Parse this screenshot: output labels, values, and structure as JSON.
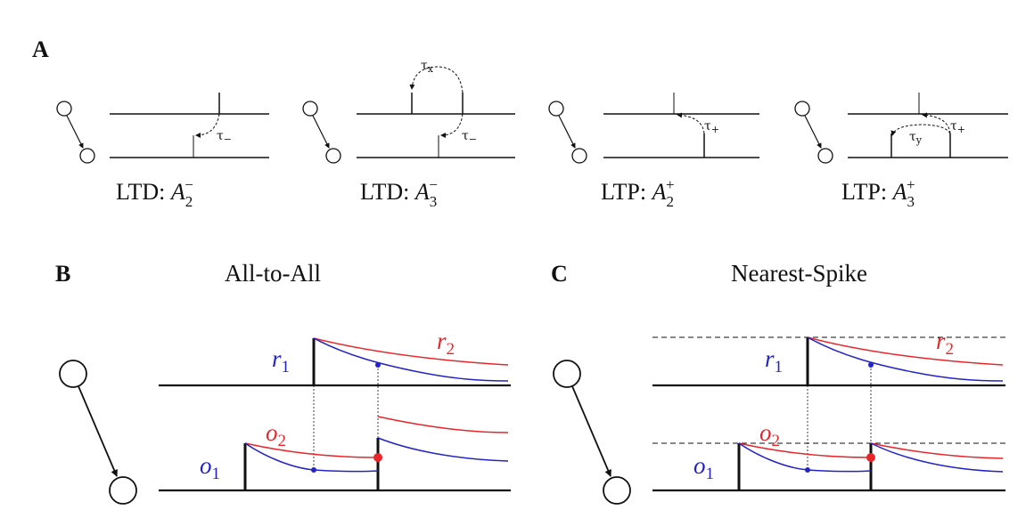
{
  "panels": {
    "a": {
      "letter": "A",
      "rules": [
        {
          "label_prefix": "LTD: ",
          "symbol": "A",
          "sub": "2",
          "sup": "−",
          "tau": "τ",
          "tau_sub": "−"
        },
        {
          "label_prefix": "LTD: ",
          "symbol": "A",
          "sub": "3",
          "sup": "−",
          "tau": "τ",
          "tau_sub": "−",
          "tau2": "τ",
          "tau2_sub": "x"
        },
        {
          "label_prefix": "LTP: ",
          "symbol": "A",
          "sub": "2",
          "sup": "+",
          "tau": "τ",
          "tau_sub": "+"
        },
        {
          "label_prefix": "LTP: ",
          "symbol": "A",
          "sub": "3",
          "sup": "+",
          "tau": "τ",
          "tau_sub": "+",
          "tau2": "τ",
          "tau2_sub": "y"
        }
      ]
    },
    "b": {
      "letter": "B",
      "title": "All-to-All",
      "labels": {
        "r1": "r",
        "r1_sub": "1",
        "r2": "r",
        "r2_sub": "2",
        "o1": "o",
        "o1_sub": "1",
        "o2": "o",
        "o2_sub": "2"
      }
    },
    "c": {
      "letter": "C",
      "title": "Nearest-Spike",
      "labels": {
        "r1": "r",
        "r1_sub": "1",
        "r2": "r",
        "r2_sub": "2",
        "o1": "o",
        "o1_sub": "1",
        "o2": "o",
        "o2_sub": "2"
      }
    }
  },
  "colors": {
    "red": "#e8262a",
    "blue": "#2323c8",
    "black": "#111111"
  }
}
